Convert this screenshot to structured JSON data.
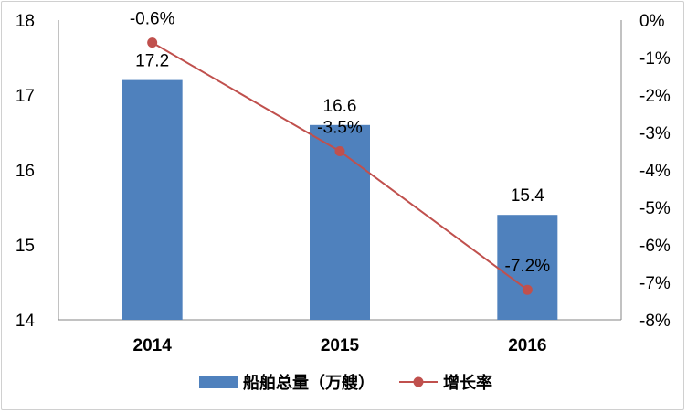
{
  "chart_data": {
    "type": "bar",
    "categories": [
      "2014",
      "2015",
      "2016"
    ],
    "series": [
      {
        "name": "船舶总量（万艘）",
        "type": "bar",
        "axis": "left",
        "values": [
          17.2,
          16.6,
          15.4
        ],
        "labels": [
          "17.2",
          "16.6",
          "15.4"
        ],
        "color": "#4f81bd"
      },
      {
        "name": "增长率",
        "type": "line",
        "axis": "right",
        "values": [
          -0.6,
          -3.5,
          -7.2
        ],
        "labels": [
          "-0.6%",
          "-3.5%",
          "-7.2%"
        ],
        "color": "#c0504d"
      }
    ],
    "left_axis": {
      "ylim": [
        14,
        18
      ],
      "ticks": [
        "14",
        "15",
        "16",
        "17",
        "18"
      ]
    },
    "right_axis": {
      "ylim": [
        -8,
        0
      ],
      "ticks": [
        "0%",
        "-1%",
        "-2%",
        "-3%",
        "-4%",
        "-5%",
        "-6%",
        "-7%",
        "-8%"
      ]
    },
    "grid": false,
    "legend_position": "bottom"
  }
}
